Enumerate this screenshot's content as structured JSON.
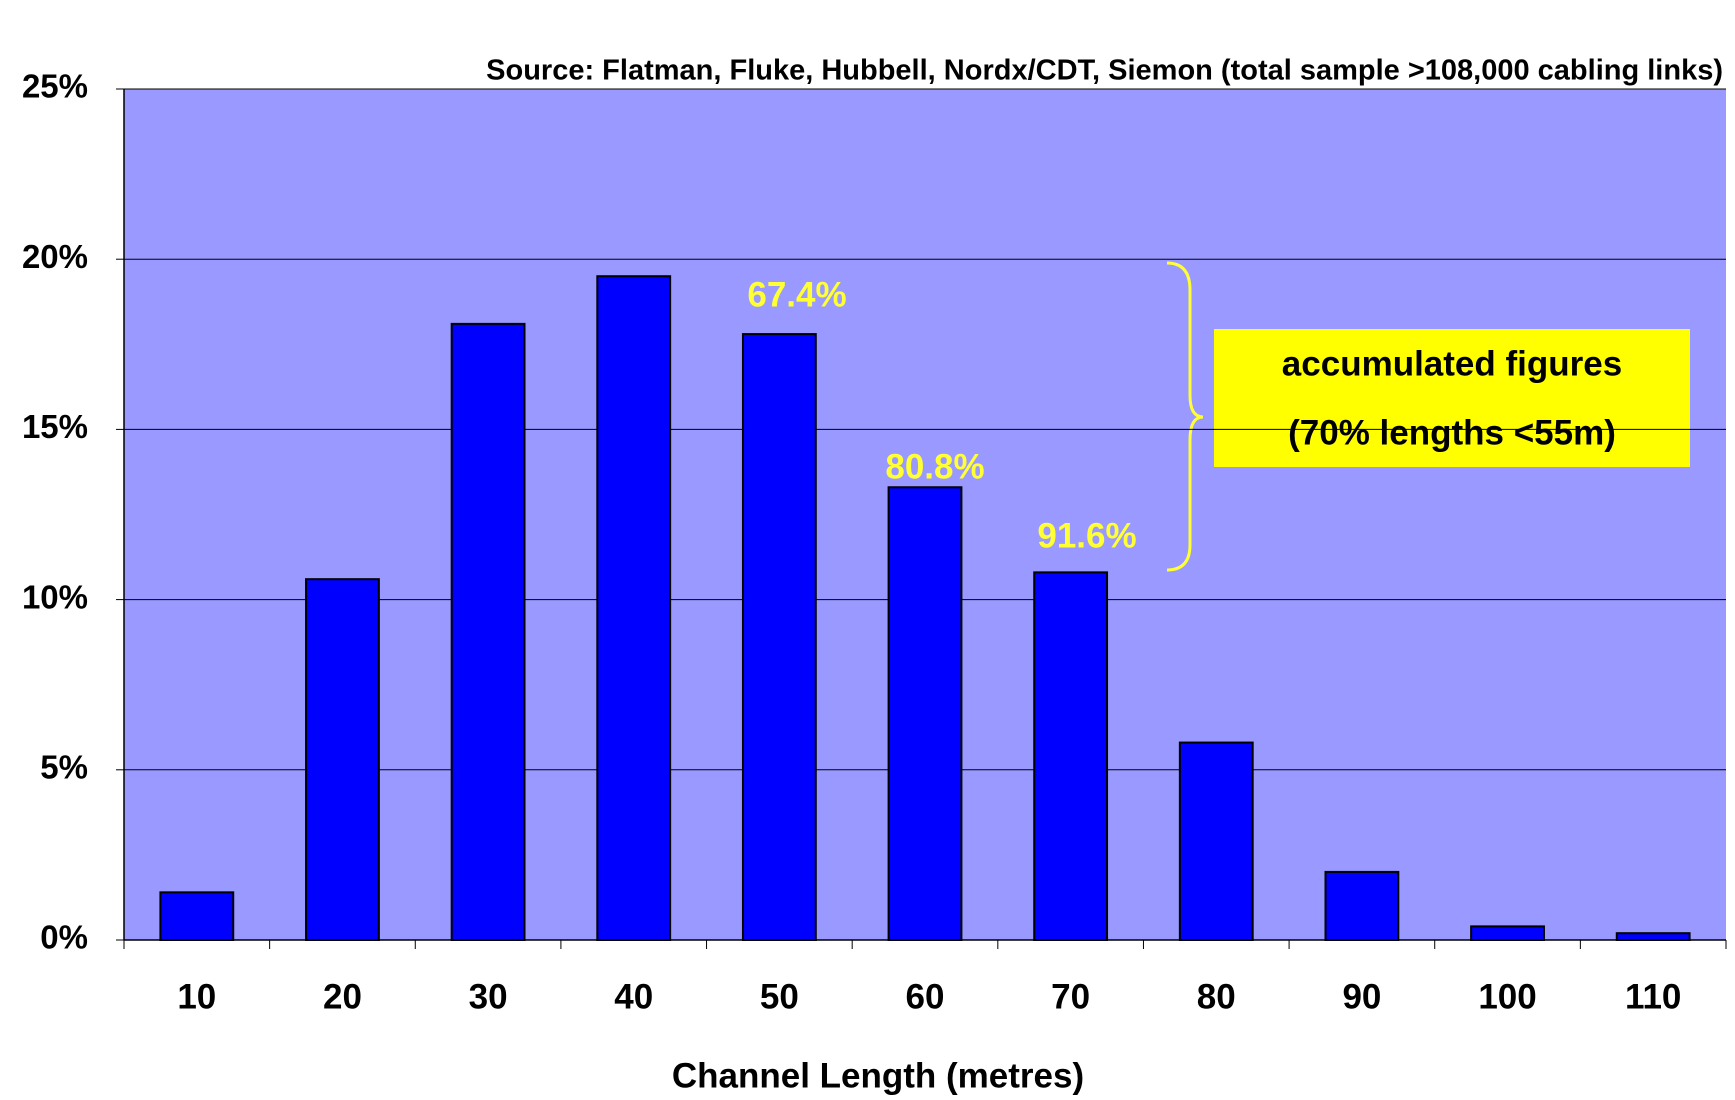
{
  "chart_data": {
    "type": "bar",
    "subtitle": "Source: Flatman, Fluke, Hubbell, Nordx/CDT, Siemon (total sample >108,000 cabling links)",
    "x_label": "Channel Length (metres)",
    "categories": [
      "10",
      "20",
      "30",
      "40",
      "50",
      "60",
      "70",
      "80",
      "90",
      "100",
      "110"
    ],
    "values": [
      1.4,
      10.6,
      18.1,
      19.5,
      17.8,
      13.3,
      10.8,
      5.8,
      2.0,
      0.4,
      0.2
    ],
    "color": "#0000ff",
    "ylim": [
      0,
      25
    ],
    "yticks": [
      {
        "value": 0,
        "label": "0%"
      },
      {
        "value": 5,
        "label": "5%"
      },
      {
        "value": 10,
        "label": "10%"
      },
      {
        "value": 15,
        "label": "15%"
      },
      {
        "value": 20,
        "label": "20%"
      },
      {
        "value": 25,
        "label": "25%"
      }
    ],
    "grid": true,
    "annotations": [
      "67.4%",
      "80.8%",
      "91.6%"
    ],
    "note_box": [
      "accumulated figures",
      "(70% lengths <55m)"
    ]
  }
}
